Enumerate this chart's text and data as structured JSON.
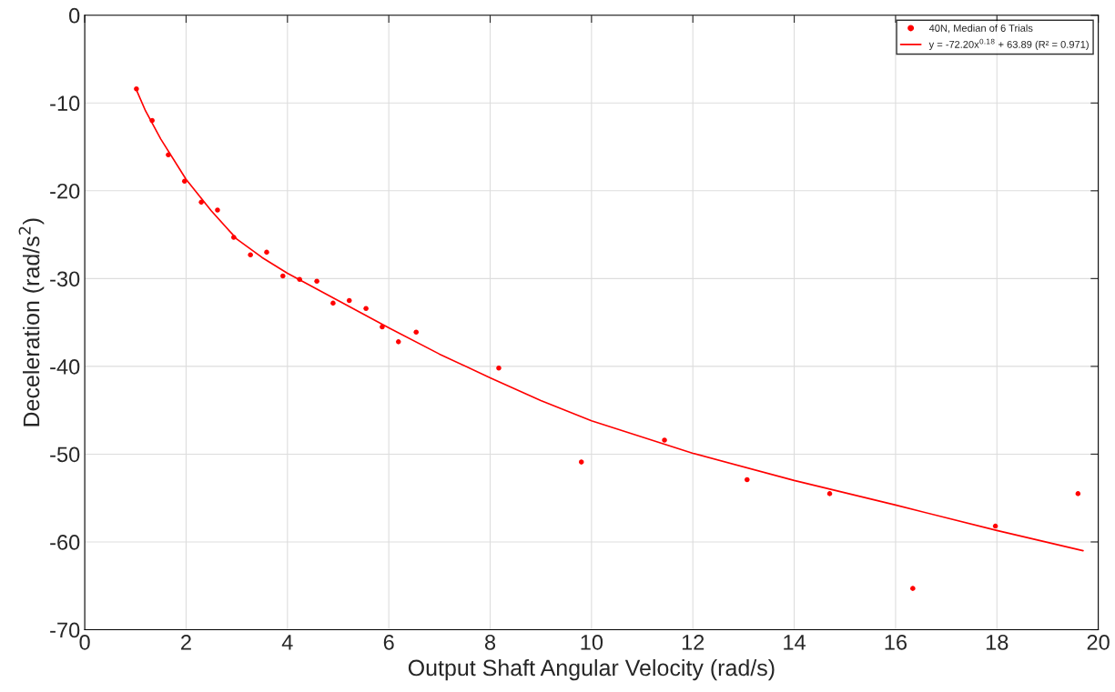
{
  "chart_data": {
    "type": "scatter",
    "xlabel": "Output Shaft Angular Velocity (rad/s)",
    "ylabel": "Deceleration (rad/s$^{2}$)",
    "xlim": [
      0,
      20
    ],
    "ylim": [
      -70,
      0
    ],
    "xticks": [
      0,
      2,
      4,
      6,
      8,
      10,
      12,
      14,
      16,
      18,
      20
    ],
    "yticks": [
      {
        "value": -70,
        "label": "-70"
      },
      {
        "value": -60,
        "label": "-60"
      },
      {
        "value": -50,
        "label": "-50"
      },
      {
        "value": -40,
        "label": "-40"
      },
      {
        "value": -30,
        "label": "-30"
      },
      {
        "value": -20,
        "label": "-20"
      },
      {
        "value": -10,
        "label": "-10"
      },
      0
    ],
    "grid": true,
    "legend": "top right",
    "series": [
      {
        "name": "40N, Median of 6 Trials",
        "marker": "circle",
        "color": "#ff0000",
        "x": [
          1.02,
          1.33,
          1.65,
          1.97,
          2.3,
          2.62,
          2.94,
          3.27,
          3.59,
          3.91,
          4.24,
          4.58,
          4.9,
          5.22,
          5.55,
          5.87,
          6.19,
          6.54,
          8.17,
          9.8,
          11.44,
          13.07,
          14.7,
          16.34,
          17.97,
          19.6
        ],
        "values": [
          -8.4,
          -12.0,
          -15.9,
          -18.9,
          -21.3,
          -22.2,
          -25.3,
          -27.3,
          -27.0,
          -29.7,
          -30.1,
          -30.3,
          -32.8,
          -32.5,
          -33.4,
          -35.5,
          -37.2,
          -36.1,
          -40.2,
          -50.9,
          -48.4,
          -52.9,
          -54.5,
          -65.3,
          -58.2,
          -54.5
        ]
      },
      {
        "name": "y = -72.20x$^{0.18}$ + 63.89 (R² = 0.971)",
        "type": "line",
        "marker": "none",
        "line_style": "solid",
        "color": "#ff0000",
        "x": [
          1.02,
          1.2,
          1.5,
          2,
          2.5,
          3,
          3.5,
          4,
          5,
          6,
          7,
          8,
          9,
          10,
          12,
          14,
          16,
          18,
          19.7
        ],
        "values": [
          -8.5,
          -10.9,
          -14.1,
          -18.7,
          -22.3,
          -25.5,
          -27.6,
          -29.4,
          -32.5,
          -35.6,
          -38.6,
          -41.3,
          -43.9,
          -46.2,
          -49.9,
          -53.0,
          -55.8,
          -58.7,
          -61.0
        ]
      }
    ]
  }
}
